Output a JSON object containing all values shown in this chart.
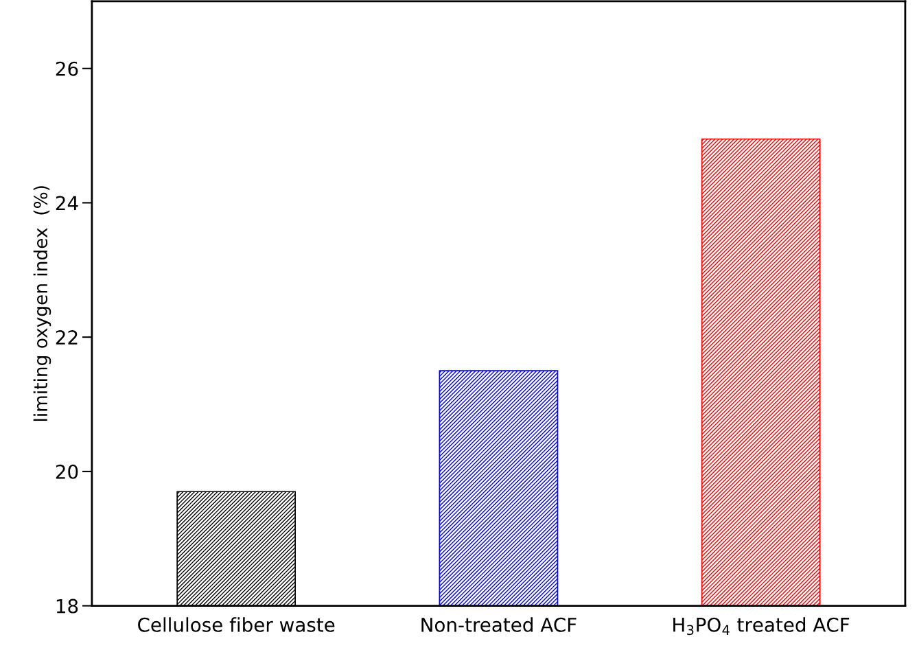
{
  "chart_data": {
    "type": "bar",
    "ylabel": "limiting oxygen index  (%)",
    "categories": [
      "Cellulose fiber waste",
      "Non-treated ACF",
      "H$_{3}$PO$_{4}$ treated ACF"
    ],
    "values": [
      19.7,
      21.5,
      24.95
    ],
    "colors": [
      "#000000",
      "#0000ff",
      "#ff0000"
    ],
    "ylim": [
      18,
      27
    ],
    "yticks": [
      18,
      20,
      22,
      24,
      26
    ],
    "grid": false,
    "legend": false
  }
}
